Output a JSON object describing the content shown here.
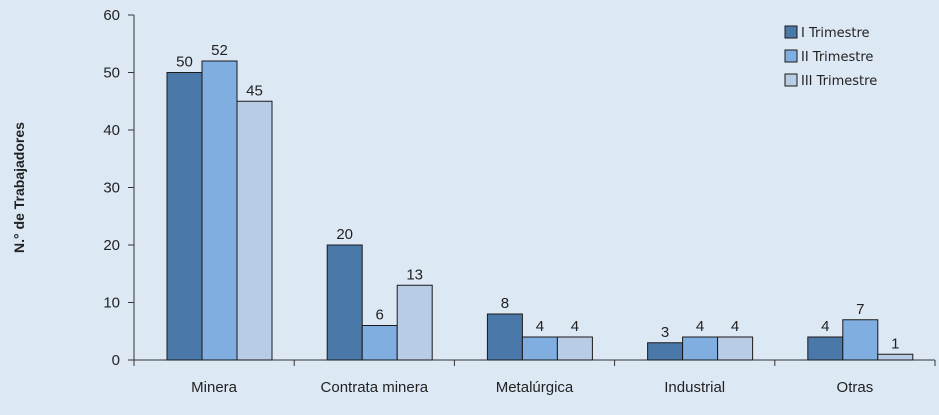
{
  "chart_data": {
    "type": "bar",
    "title": "",
    "xlabel": "",
    "ylabel": "N.° de Trabajadores",
    "ylim": [
      0,
      60
    ],
    "yticks": [
      0,
      10,
      20,
      30,
      40,
      50,
      60
    ],
    "categories": [
      "Minera",
      "Contrata minera",
      "Metalúrgica",
      "Industrial",
      "Otras"
    ],
    "series": [
      {
        "name": "I Trimestre",
        "values": [
          50,
          20,
          8,
          3,
          4
        ],
        "color": "#4a78a8"
      },
      {
        "name": "II Trimestre",
        "values": [
          52,
          6,
          4,
          4,
          7
        ],
        "color": "#80aee0"
      },
      {
        "name": "III Trimestre",
        "values": [
          45,
          13,
          4,
          4,
          1
        ],
        "color": "#b8cce6"
      }
    ],
    "grid": false,
    "legend_position": "top-right",
    "data_labels": true
  }
}
